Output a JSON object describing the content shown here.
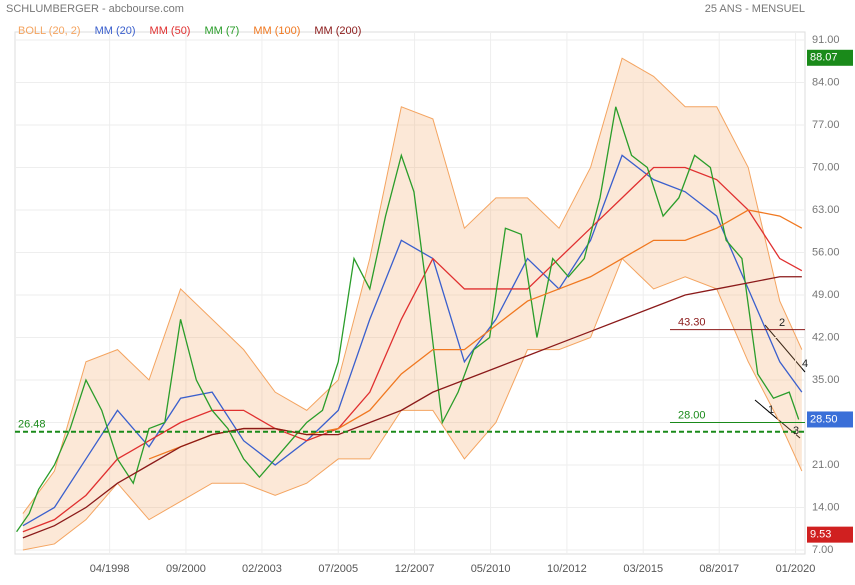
{
  "chart_data": {
    "type": "line",
    "title": "SCHLUMBERGER - abcbourse.com",
    "subtitle": "25 ANS - MENSUEL",
    "xlim": [
      1995.25,
      2020.3
    ],
    "ylim": [
      7,
      91
    ],
    "xticks": [
      {
        "value": 1998.25,
        "label": "04/1998"
      },
      {
        "value": 2000.67,
        "label": "09/2000"
      },
      {
        "value": 2003.08,
        "label": "02/2003"
      },
      {
        "value": 2005.5,
        "label": "07/2005"
      },
      {
        "value": 2007.92,
        "label": "12/2007"
      },
      {
        "value": 2010.33,
        "label": "05/2010"
      },
      {
        "value": 2012.75,
        "label": "10/2012"
      },
      {
        "value": 2015.17,
        "label": "03/2015"
      },
      {
        "value": 2017.58,
        "label": "08/2017"
      },
      {
        "value": 2020.0,
        "label": "01/2020"
      }
    ],
    "yticks": [
      {
        "value": 7,
        "label": "7.00"
      },
      {
        "value": 14,
        "label": "14.00"
      },
      {
        "value": 21,
        "label": "21.00"
      },
      {
        "value": 28,
        "label": "28.00"
      },
      {
        "value": 35,
        "label": "35.00"
      },
      {
        "value": 42,
        "label": "42.00"
      },
      {
        "value": 49,
        "label": "49.00"
      },
      {
        "value": 56,
        "label": "56.00"
      },
      {
        "value": 63,
        "label": "63.00"
      },
      {
        "value": 70,
        "label": "70.00"
      },
      {
        "value": 77,
        "label": "77.00"
      },
      {
        "value": 84,
        "label": "84.00"
      },
      {
        "value": 91,
        "label": "91.00"
      }
    ],
    "band": {
      "name": "BOLL (20, 2)",
      "color": "#f4a460",
      "x": [
        1995.5,
        1996.5,
        1997.5,
        1998.5,
        1999.5,
        2000.5,
        2001.5,
        2002.5,
        2003.5,
        2004.5,
        2005.5,
        2006.5,
        2007.5,
        2008.5,
        2009.5,
        2010.5,
        2011.5,
        2012.5,
        2013.5,
        2014.5,
        2015.5,
        2016.5,
        2017.5,
        2018.5,
        2019.5,
        2020.2
      ],
      "upper": [
        13,
        20,
        38,
        40,
        35,
        50,
        45,
        40,
        33,
        30,
        35,
        55,
        80,
        78,
        60,
        65,
        65,
        60,
        70,
        88,
        85,
        80,
        80,
        70,
        48,
        40
      ],
      "lower": [
        7,
        8,
        12,
        18,
        12,
        15,
        18,
        18,
        16,
        18,
        22,
        22,
        30,
        30,
        22,
        28,
        40,
        40,
        42,
        55,
        50,
        52,
        50,
        38,
        28,
        20
      ]
    },
    "series": [
      {
        "name": "MM (20)",
        "color": "#3a5fcd",
        "x": [
          1995.5,
          1996.5,
          1997.5,
          1998.5,
          1999.5,
          2000.5,
          2001.5,
          2002.5,
          2003.5,
          2004.5,
          2005.5,
          2006.5,
          2007.5,
          2008.5,
          2009.5,
          2010.5,
          2011.5,
          2012.5,
          2013.5,
          2014.5,
          2015.5,
          2016.5,
          2017.5,
          2018.5,
          2019.5,
          2020.2
        ],
        "values": [
          11,
          14,
          22,
          30,
          24,
          32,
          33,
          25,
          21,
          25,
          30,
          45,
          58,
          55,
          38,
          45,
          55,
          50,
          58,
          72,
          68,
          66,
          62,
          50,
          38,
          33
        ]
      },
      {
        "name": "MM (50)",
        "color": "#e03030",
        "x": [
          1995.5,
          1996.5,
          1997.5,
          1998.5,
          1999.5,
          2000.5,
          2001.5,
          2002.5,
          2003.5,
          2004.5,
          2005.5,
          2006.5,
          2007.5,
          2008.5,
          2009.5,
          2010.5,
          2011.5,
          2012.5,
          2013.5,
          2014.5,
          2015.5,
          2016.5,
          2017.5,
          2018.5,
          2019.5,
          2020.2
        ],
        "values": [
          10,
          12,
          16,
          22,
          25,
          28,
          30,
          30,
          27,
          25,
          27,
          33,
          45,
          55,
          50,
          50,
          50,
          55,
          60,
          65,
          70,
          70,
          68,
          63,
          55,
          53
        ]
      },
      {
        "name": "MM (7)",
        "color": "#2a9d2a",
        "x": [
          1995.3,
          1995.7,
          1996,
          1996.5,
          1997,
          1997.5,
          1998,
          1998.5,
          1999,
          1999.5,
          2000,
          2000.5,
          2000.75,
          2001,
          2001.5,
          2002,
          2002.5,
          2003,
          2003.5,
          2004,
          2004.5,
          2005,
          2005.5,
          2006,
          2006.5,
          2007,
          2007.5,
          2007.9,
          2008.3,
          2008.8,
          2009.3,
          2009.8,
          2010.3,
          2010.8,
          2011.3,
          2011.8,
          2012.3,
          2012.8,
          2013.3,
          2013.8,
          2014.3,
          2014.8,
          2015.3,
          2015.8,
          2016.3,
          2016.8,
          2017.3,
          2017.8,
          2018.3,
          2018.8,
          2019.3,
          2019.8,
          2020.1
        ],
        "values": [
          10,
          13,
          17,
          21,
          27,
          35,
          30,
          22,
          18,
          27,
          28,
          45,
          40,
          35,
          30,
          27,
          22,
          19,
          22,
          25,
          28,
          30,
          38,
          55,
          50,
          62,
          72,
          66,
          50,
          28,
          33,
          40,
          42,
          60,
          59,
          42,
          55,
          52,
          55,
          65,
          80,
          72,
          70,
          62,
          65,
          72,
          70,
          58,
          55,
          36,
          32,
          33,
          28.5
        ]
      },
      {
        "name": "MM (100)",
        "color": "#f07820",
        "x": [
          1995.5,
          1996.5,
          1997.5,
          1998.5,
          1999.5,
          2000.5,
          2001.5,
          2002.5,
          2003.5,
          2004.5,
          2005.5,
          2006.5,
          2007.5,
          2008.5,
          2009.5,
          2010.5,
          2011.5,
          2012.5,
          2013.5,
          2014.5,
          2015.5,
          2016.5,
          2017.5,
          2018.5,
          2019.5,
          2020.2
        ],
        "values": [
          null,
          null,
          null,
          null,
          22,
          24,
          26,
          27,
          27,
          26,
          27,
          30,
          36,
          40,
          40,
          44,
          48,
          50,
          52,
          55,
          58,
          58,
          60,
          63,
          62,
          60
        ]
      },
      {
        "name": "MM (200)",
        "color": "#8b1a1a",
        "x": [
          1995.5,
          1996.5,
          1997.5,
          1998.5,
          1999.5,
          2000.5,
          2001.5,
          2002.5,
          2003.5,
          2004.5,
          2005.5,
          2006.5,
          2007.5,
          2008.5,
          2009.5,
          2010.5,
          2011.5,
          2012.5,
          2013.5,
          2014.5,
          2015.5,
          2016.5,
          2017.5,
          2018.5,
          2019.5,
          2020.2
        ],
        "values": [
          9,
          11,
          14,
          18,
          21,
          24,
          26,
          27,
          27,
          26,
          26,
          28,
          30,
          33,
          35,
          37,
          39,
          41,
          43,
          45,
          47,
          49,
          50,
          51,
          52,
          52
        ]
      }
    ],
    "levels": {
      "values": [
        26.48,
        28,
        43.3
      ],
      "value_labels": [
        "26.48",
        "28.00",
        "43.30"
      ],
      "colors": [
        "#1a8a1a",
        "#1a8a1a",
        "#8b1a1a"
      ]
    },
    "price_boxes": {
      "values": [
        88.07,
        28.5,
        9.53
      ],
      "value_labels": [
        "88.07",
        "28.50",
        "9.53"
      ],
      "colors": [
        "#1a8a1a",
        "#3a6fd8",
        "#d02020"
      ]
    },
    "waves": [
      "1",
      "2",
      "3",
      "4"
    ]
  }
}
